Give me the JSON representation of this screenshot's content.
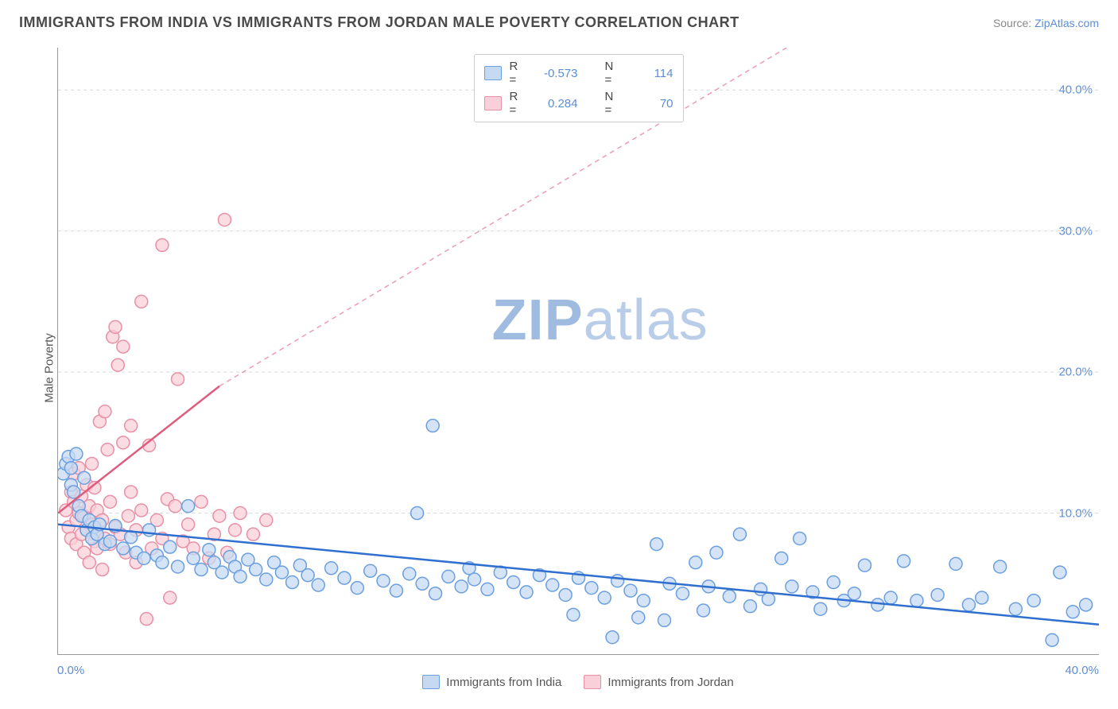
{
  "title": "IMMIGRANTS FROM INDIA VS IMMIGRANTS FROM JORDAN MALE POVERTY CORRELATION CHART",
  "source_prefix": "Source: ",
  "source_link": "ZipAtlas.com",
  "ylabel": "Male Poverty",
  "watermark_a": "ZIP",
  "watermark_b": "atlas",
  "chart": {
    "type": "scatter",
    "xlim": [
      0,
      40
    ],
    "ylim": [
      0,
      43
    ],
    "xtick_labels": [
      "0.0%",
      "40.0%"
    ],
    "ytick_labels": [
      "10.0%",
      "20.0%",
      "30.0%",
      "40.0%"
    ],
    "ytick_values": [
      10,
      20,
      30,
      40
    ],
    "grid_color": "#d9d9d9",
    "background_color": "#ffffff",
    "axis_color": "#999999",
    "label_color": "#5b8dd6",
    "label_fontsize": 15,
    "title_fontsize": 18,
    "title_color": "#4a4a4a",
    "marker_size": 8,
    "marker_stroke_width": 1.5,
    "series": [
      {
        "name": "Immigrants from India",
        "fill": "#c5d9f1",
        "stroke": "#6b9fe0",
        "line_color": "#2f6fd0",
        "R": "-0.573",
        "N": "114",
        "trend": {
          "x1": 0,
          "y1": 9.2,
          "x2": 40,
          "y2": 2.1,
          "dash": "none",
          "width": 2.5
        },
        "points": [
          [
            0.2,
            12.8
          ],
          [
            0.3,
            13.5
          ],
          [
            0.4,
            14.0
          ],
          [
            0.5,
            12.0
          ],
          [
            0.5,
            13.2
          ],
          [
            0.6,
            11.5
          ],
          [
            0.7,
            14.2
          ],
          [
            0.8,
            10.5
          ],
          [
            0.9,
            9.8
          ],
          [
            1.0,
            12.5
          ],
          [
            1.1,
            8.8
          ],
          [
            1.2,
            9.5
          ],
          [
            1.3,
            8.2
          ],
          [
            1.4,
            9.0
          ],
          [
            1.5,
            8.5
          ],
          [
            1.6,
            9.2
          ],
          [
            1.8,
            7.8
          ],
          [
            2.0,
            8.0
          ],
          [
            2.2,
            9.1
          ],
          [
            2.5,
            7.5
          ],
          [
            2.8,
            8.3
          ],
          [
            3.0,
            7.2
          ],
          [
            3.3,
            6.8
          ],
          [
            3.5,
            8.8
          ],
          [
            3.8,
            7.0
          ],
          [
            4.0,
            6.5
          ],
          [
            4.3,
            7.6
          ],
          [
            4.6,
            6.2
          ],
          [
            5.0,
            10.5
          ],
          [
            5.2,
            6.8
          ],
          [
            5.5,
            6.0
          ],
          [
            5.8,
            7.4
          ],
          [
            6.0,
            6.5
          ],
          [
            6.3,
            5.8
          ],
          [
            6.6,
            6.9
          ],
          [
            6.8,
            6.2
          ],
          [
            7.0,
            5.5
          ],
          [
            7.3,
            6.7
          ],
          [
            7.6,
            6.0
          ],
          [
            8.0,
            5.3
          ],
          [
            8.3,
            6.5
          ],
          [
            8.6,
            5.8
          ],
          [
            9.0,
            5.1
          ],
          [
            9.3,
            6.3
          ],
          [
            9.6,
            5.6
          ],
          [
            10.0,
            4.9
          ],
          [
            10.5,
            6.1
          ],
          [
            11.0,
            5.4
          ],
          [
            11.5,
            4.7
          ],
          [
            12.0,
            5.9
          ],
          [
            12.5,
            5.2
          ],
          [
            13.0,
            4.5
          ],
          [
            13.5,
            5.7
          ],
          [
            13.8,
            10.0
          ],
          [
            14.0,
            5.0
          ],
          [
            14.4,
            16.2
          ],
          [
            14.5,
            4.3
          ],
          [
            15.0,
            5.5
          ],
          [
            15.5,
            4.8
          ],
          [
            15.8,
            6.1
          ],
          [
            16.0,
            5.3
          ],
          [
            16.5,
            4.6
          ],
          [
            17.0,
            5.8
          ],
          [
            17.5,
            5.1
          ],
          [
            18.0,
            4.4
          ],
          [
            18.5,
            5.6
          ],
          [
            19.0,
            4.9
          ],
          [
            19.5,
            4.2
          ],
          [
            19.8,
            2.8
          ],
          [
            20.0,
            5.4
          ],
          [
            20.5,
            4.7
          ],
          [
            21.0,
            4.0
          ],
          [
            21.3,
            1.2
          ],
          [
            21.5,
            5.2
          ],
          [
            22.0,
            4.5
          ],
          [
            22.3,
            2.6
          ],
          [
            22.5,
            3.8
          ],
          [
            23.0,
            7.8
          ],
          [
            23.3,
            2.4
          ],
          [
            23.5,
            5.0
          ],
          [
            24.0,
            4.3
          ],
          [
            24.5,
            6.5
          ],
          [
            24.8,
            3.1
          ],
          [
            25.0,
            4.8
          ],
          [
            25.3,
            7.2
          ],
          [
            25.8,
            4.1
          ],
          [
            26.2,
            8.5
          ],
          [
            26.6,
            3.4
          ],
          [
            27.0,
            4.6
          ],
          [
            27.3,
            3.9
          ],
          [
            27.8,
            6.8
          ],
          [
            28.2,
            4.8
          ],
          [
            28.5,
            8.2
          ],
          [
            29.0,
            4.4
          ],
          [
            29.3,
            3.2
          ],
          [
            29.8,
            5.1
          ],
          [
            30.2,
            3.8
          ],
          [
            30.6,
            4.3
          ],
          [
            31.0,
            6.3
          ],
          [
            31.5,
            3.5
          ],
          [
            32.0,
            4.0
          ],
          [
            32.5,
            6.6
          ],
          [
            33.0,
            3.8
          ],
          [
            33.8,
            4.2
          ],
          [
            34.5,
            6.4
          ],
          [
            35.0,
            3.5
          ],
          [
            35.5,
            4.0
          ],
          [
            36.2,
            6.2
          ],
          [
            36.8,
            3.2
          ],
          [
            37.5,
            3.8
          ],
          [
            38.2,
            1.0
          ],
          [
            38.5,
            5.8
          ],
          [
            39.0,
            3.0
          ],
          [
            39.5,
            3.5
          ]
        ]
      },
      {
        "name": "Immigrants from Jordan",
        "fill": "#f9d0da",
        "stroke": "#e890a5",
        "line_color": "#e05c7e",
        "R": "0.284",
        "N": "70",
        "trend": {
          "x1": 0,
          "y1": 10.0,
          "x2": 6.2,
          "y2": 19.0,
          "dash": "none",
          "width": 2.5
        },
        "trend_ext": {
          "x1": 6.2,
          "y1": 19.0,
          "x2": 28,
          "y2": 43,
          "dash": "6,5",
          "width": 1.5
        },
        "points": [
          [
            0.3,
            10.2
          ],
          [
            0.4,
            9.0
          ],
          [
            0.5,
            11.5
          ],
          [
            0.5,
            8.2
          ],
          [
            0.6,
            10.8
          ],
          [
            0.6,
            12.8
          ],
          [
            0.7,
            9.5
          ],
          [
            0.7,
            7.8
          ],
          [
            0.8,
            13.2
          ],
          [
            0.8,
            10.0
          ],
          [
            0.9,
            8.5
          ],
          [
            0.9,
            11.2
          ],
          [
            1.0,
            9.8
          ],
          [
            1.0,
            7.2
          ],
          [
            1.1,
            12.0
          ],
          [
            1.1,
            8.8
          ],
          [
            1.2,
            10.5
          ],
          [
            1.2,
            6.5
          ],
          [
            1.3,
            9.2
          ],
          [
            1.3,
            13.5
          ],
          [
            1.4,
            8.0
          ],
          [
            1.4,
            11.8
          ],
          [
            1.5,
            7.5
          ],
          [
            1.5,
            10.2
          ],
          [
            1.6,
            16.5
          ],
          [
            1.7,
            9.5
          ],
          [
            1.7,
            6.0
          ],
          [
            1.8,
            17.2
          ],
          [
            1.8,
            8.2
          ],
          [
            1.9,
            14.5
          ],
          [
            2.0,
            7.8
          ],
          [
            2.0,
            10.8
          ],
          [
            2.1,
            22.5
          ],
          [
            2.2,
            9.0
          ],
          [
            2.2,
            23.2
          ],
          [
            2.3,
            20.5
          ],
          [
            2.4,
            8.5
          ],
          [
            2.5,
            21.8
          ],
          [
            2.5,
            15.0
          ],
          [
            2.6,
            7.2
          ],
          [
            2.7,
            9.8
          ],
          [
            2.8,
            16.2
          ],
          [
            2.8,
            11.5
          ],
          [
            3.0,
            8.8
          ],
          [
            3.0,
            6.5
          ],
          [
            3.2,
            25.0
          ],
          [
            3.2,
            10.2
          ],
          [
            3.4,
            2.5
          ],
          [
            3.5,
            14.8
          ],
          [
            3.6,
            7.5
          ],
          [
            3.8,
            9.5
          ],
          [
            4.0,
            8.2
          ],
          [
            4.0,
            29.0
          ],
          [
            4.2,
            11.0
          ],
          [
            4.3,
            4.0
          ],
          [
            4.5,
            10.5
          ],
          [
            4.6,
            19.5
          ],
          [
            4.8,
            8.0
          ],
          [
            5.0,
            9.2
          ],
          [
            5.2,
            7.5
          ],
          [
            5.5,
            10.8
          ],
          [
            5.8,
            6.8
          ],
          [
            6.0,
            8.5
          ],
          [
            6.2,
            9.8
          ],
          [
            6.4,
            30.8
          ],
          [
            6.5,
            7.2
          ],
          [
            6.8,
            8.8
          ],
          [
            7.0,
            10.0
          ],
          [
            7.5,
            8.5
          ],
          [
            8.0,
            9.5
          ]
        ]
      }
    ]
  },
  "legend_bottom": [
    {
      "label": "Immigrants from India"
    },
    {
      "label": "Immigrants from Jordan"
    }
  ]
}
